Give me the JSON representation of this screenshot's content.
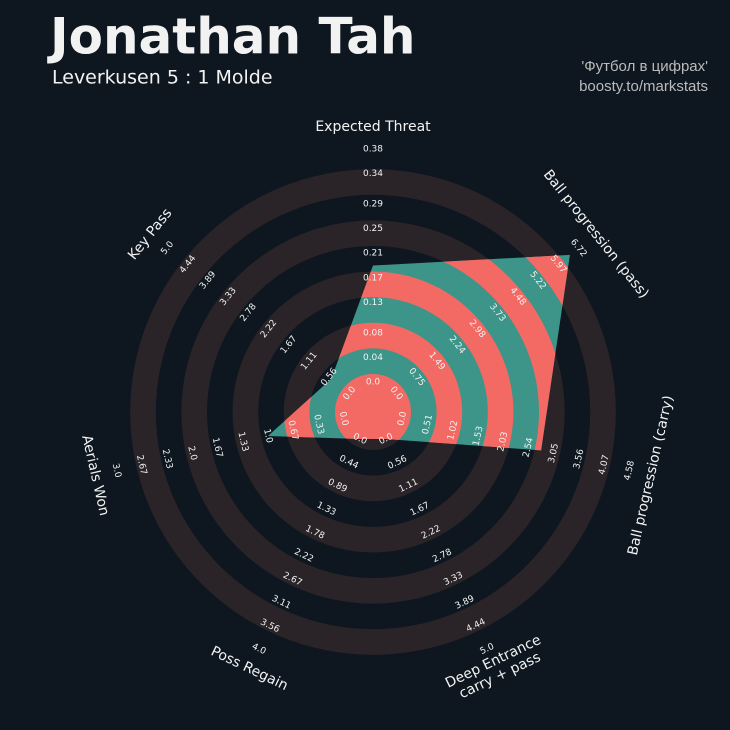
{
  "chart_data": {
    "type": "radar",
    "title": "Jonathan Tah",
    "subtitle": "Leverkusen 5 : 1 Molde",
    "annotations": [
      "'Футбол в цифрах'",
      "boosty.to/markstats"
    ],
    "categories": [
      "Expected Threat",
      "Ball progression (pass)",
      "Ball progression (carry)",
      "Deep Entrance\ncarry + pass",
      "Poss Regain",
      "Aerials Won",
      "Key Pass"
    ],
    "values": [
      0.19,
      6.4,
      2.8,
      0,
      0,
      1.0,
      0.5
    ],
    "color": "#3d9489",
    "ring_color": "#f36a64",
    "background_ring_color": "#2a2428",
    "axes": [
      {
        "lim": [
          0,
          0.38
        ],
        "ticks": [
          {
            "value": 0,
            "label": "0.0"
          },
          0.04,
          0.08,
          0.13,
          0.17,
          0.21,
          0.25,
          0.29,
          0.34,
          0.38
        ]
      },
      {
        "lim": [
          0,
          6.72
        ],
        "ticks": [
          {
            "value": 0,
            "label": "0.0"
          },
          0.75,
          1.49,
          2.24,
          2.98,
          3.73,
          4.48,
          5.22,
          5.97,
          6.72
        ]
      },
      {
        "lim": [
          0,
          4.58
        ],
        "ticks": [
          {
            "value": 0,
            "label": "0.0"
          },
          0.51,
          1.02,
          1.53,
          2.03,
          2.54,
          3.05,
          3.56,
          4.07,
          4.58
        ]
      },
      {
        "lim": [
          0,
          5.0
        ],
        "ticks": [
          {
            "value": 0,
            "label": "0.0"
          },
          0.56,
          1.11,
          1.67,
          2.22,
          2.78,
          3.33,
          3.89,
          4.44,
          {
            "value": 5,
            "label": "5.0"
          }
        ]
      },
      {
        "lim": [
          0,
          4.0
        ],
        "ticks": [
          {
            "value": 0,
            "label": "0.0"
          },
          0.44,
          0.89,
          1.33,
          1.78,
          2.22,
          2.67,
          3.11,
          3.56,
          {
            "value": 4,
            "label": "4.0"
          }
        ]
      },
      {
        "lim": [
          0,
          3.0
        ],
        "ticks": [
          {
            "value": 0,
            "label": "0.0"
          },
          0.33,
          0.67,
          {
            "value": 1,
            "label": "1.0"
          },
          1.33,
          1.67,
          {
            "value": 2,
            "label": "2.0"
          },
          2.33,
          2.67,
          {
            "value": 3,
            "label": "3.0"
          }
        ]
      },
      {
        "lim": [
          0,
          5.0
        ],
        "ticks": [
          {
            "value": 0,
            "label": "0.0"
          },
          0.56,
          1.11,
          1.67,
          2.22,
          2.78,
          3.33,
          3.89,
          4.44,
          {
            "value": 5,
            "label": "5.0"
          }
        ]
      }
    ]
  }
}
